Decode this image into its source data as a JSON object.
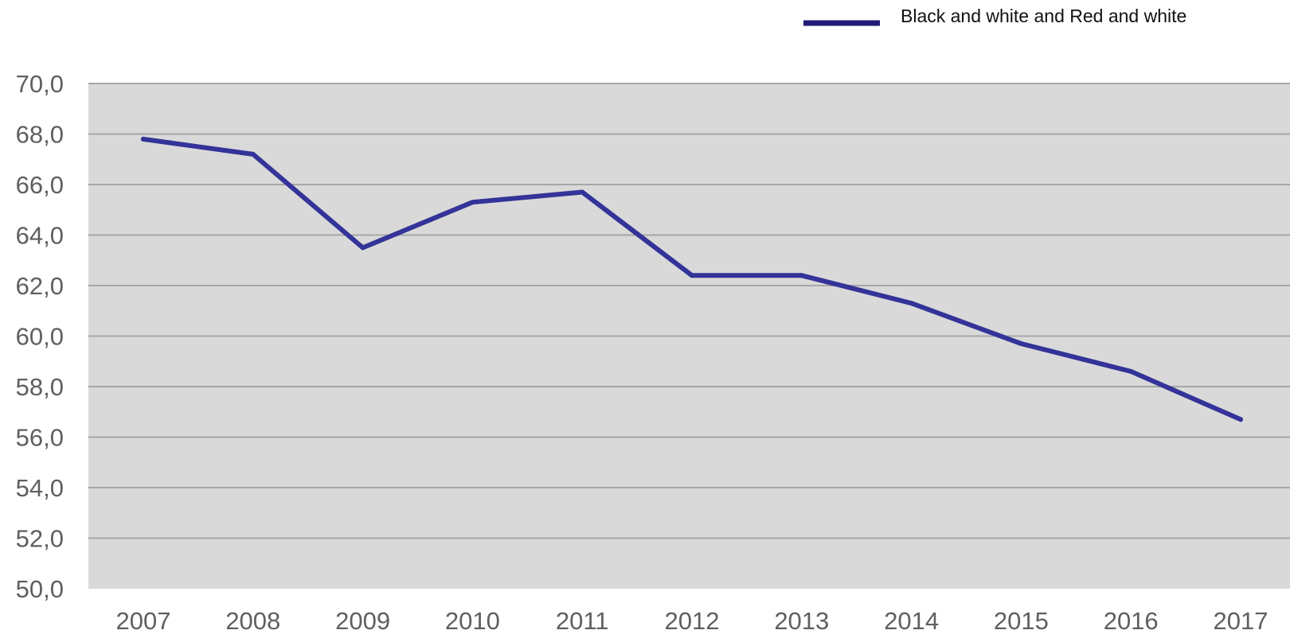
{
  "chart_data": {
    "type": "line",
    "categories": [
      "2007",
      "2008",
      "2009",
      "2010",
      "2011",
      "2012",
      "2013",
      "2014",
      "2015",
      "2016",
      "2017"
    ],
    "series": [
      {
        "name": "Black and white and Red and white",
        "values": [
          67.8,
          67.2,
          63.5,
          65.3,
          65.7,
          62.4,
          62.4,
          61.3,
          59.7,
          58.6,
          56.7
        ]
      }
    ],
    "yticks": [
      "50,0",
      "52,0",
      "54,0",
      "56,0",
      "58,0",
      "60,0",
      "62,0",
      "64,0",
      "66,0",
      "68,0",
      "70,0"
    ],
    "ylim": [
      50,
      70
    ],
    "grid": true,
    "legend_position": "top-right",
    "colors": {
      "line": "#333399",
      "legend_swatch": "#1f1a78",
      "plot_background": "#d9d9d9",
      "gridline": "#a6a6a6"
    }
  }
}
